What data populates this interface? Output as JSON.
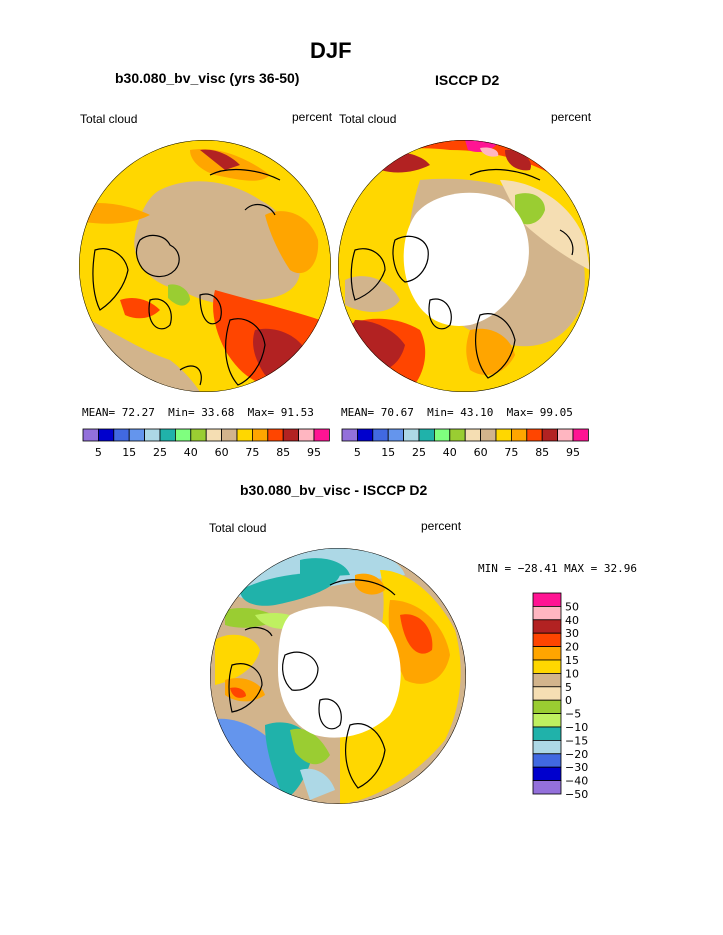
{
  "figure": {
    "season": "DJF",
    "diff_title": "b30.080_bv_visc - ISCCP D2"
  },
  "panels": [
    {
      "title": "b30.080_bv_visc (yrs 36-50)",
      "variable": "Total cloud",
      "units": "percent",
      "mean_label": "MEAN=",
      "mean": "72.27",
      "min_label": "Min=",
      "min": "33.68",
      "max_label": "Max=",
      "max": "91.53"
    },
    {
      "title": "ISCCP D2",
      "variable": "Total cloud",
      "units": "percent",
      "mean_label": "MEAN=",
      "mean": "70.67",
      "min_label": "Min=",
      "min": "43.10",
      "max_label": "Max=",
      "max": "99.05"
    }
  ],
  "diff_panel": {
    "variable": "Total cloud",
    "units": "percent",
    "minmax_text": "MIN = −28.41 MAX =  32.96"
  },
  "colorbar_top": {
    "colors": [
      "#9370db",
      "#0000cd",
      "#4169e1",
      "#6495ed",
      "#add8e6",
      "#20b2aa",
      "#7fff7f",
      "#9acd32",
      "#f5deb3",
      "#d2b48c",
      "#ffd700",
      "#ffa500",
      "#ff4500",
      "#b22222",
      "#ffb6c1",
      "#ff1493"
    ],
    "labels": [
      "5",
      "15",
      "25",
      "40",
      "60",
      "75",
      "85",
      "95"
    ]
  },
  "colorbar_diff": {
    "colors": [
      "#ff1493",
      "#ffb6c1",
      "#b22222",
      "#ff4500",
      "#ffa500",
      "#ffd700",
      "#d2b48c",
      "#f5deb3",
      "#9acd32",
      "#bff060",
      "#20b2aa",
      "#add8e6",
      "#4169e1",
      "#0000cd",
      "#9370db"
    ],
    "labels": [
      "50",
      "40",
      "30",
      "20",
      "15",
      "10",
      "5",
      "0",
      "−5",
      "−10",
      "−15",
      "−20",
      "−30",
      "−40",
      "−50"
    ]
  },
  "palette": {
    "land_outline": "#000000",
    "tan": "#d2b48c",
    "yellow": "#ffd700",
    "orange": "#ffa500",
    "redorange": "#ff4500",
    "darkred": "#b22222",
    "green": "#9acd32",
    "pink": "#ffb6c1",
    "magenta": "#ff1493",
    "teal": "#20b2aa",
    "lightblue": "#add8e6",
    "blue": "#6495ed",
    "wheat": "#f5deb3"
  }
}
